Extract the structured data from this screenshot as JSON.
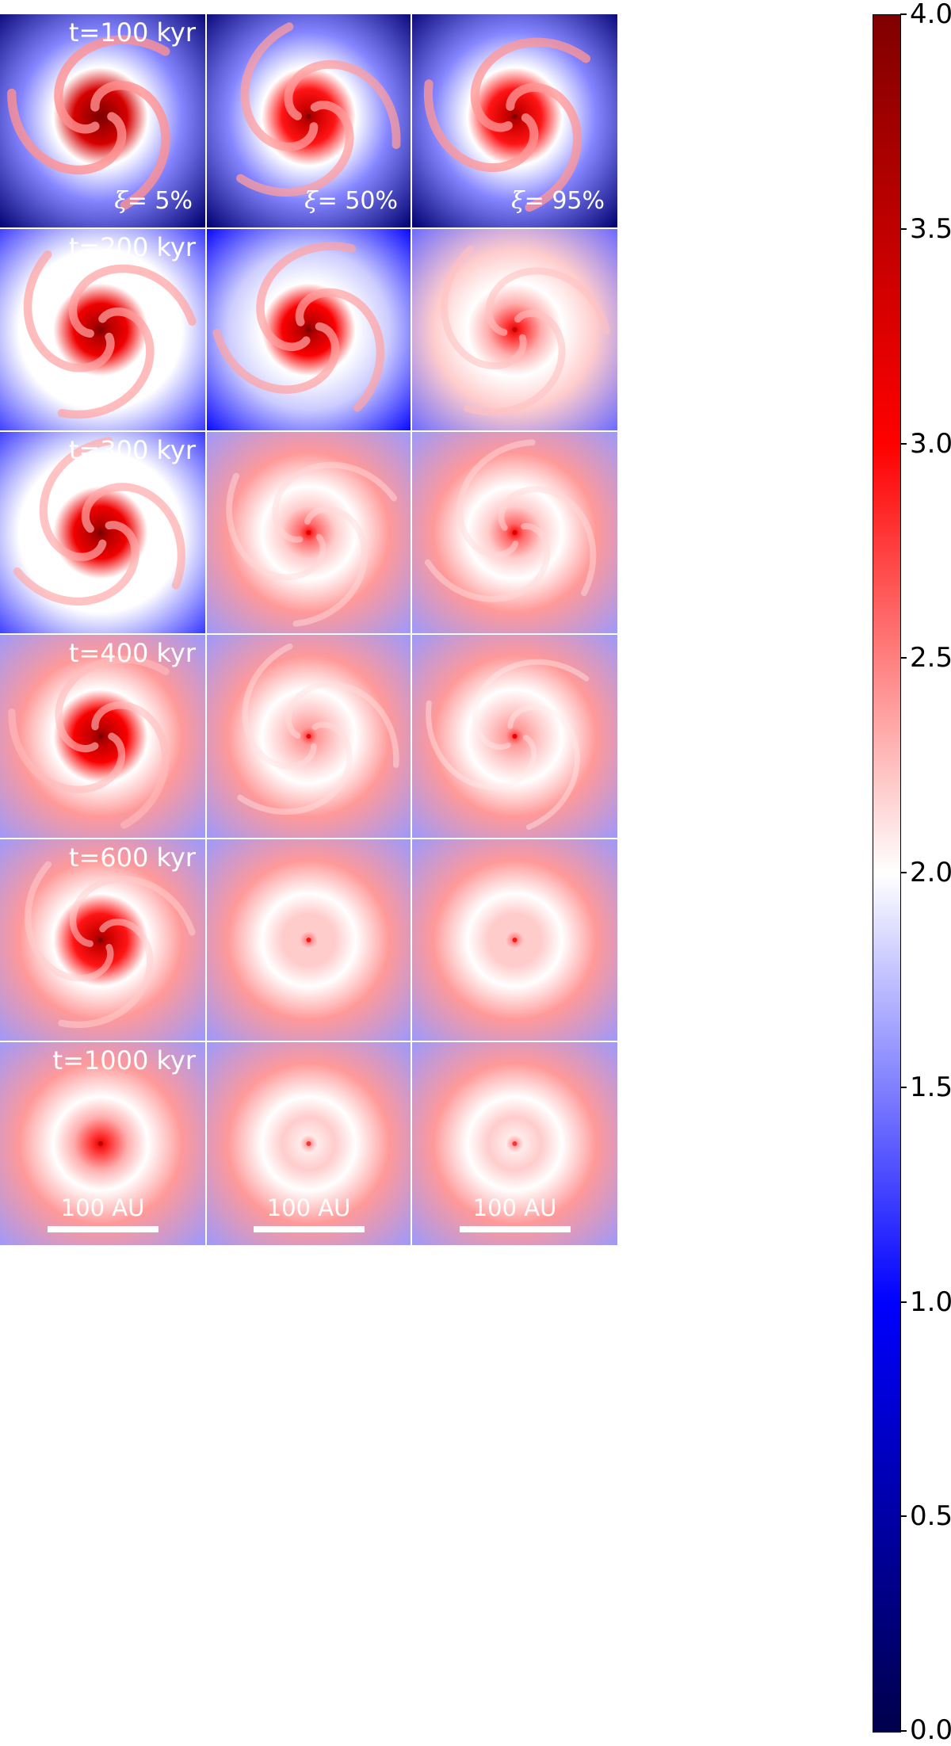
{
  "time_labels": [
    "t=100 kyr",
    "t=200 kyr",
    "t=300 kyr",
    "t=400 kyr",
    "t=600 kyr",
    "t=1000 kyr"
  ],
  "columns": [
    {
      "xi_symbol": "ξ",
      "xi_value": "= 5%"
    },
    {
      "xi_symbol": "ξ",
      "xi_value": "= 50%"
    },
    {
      "xi_symbol": "ξ",
      "xi_value": "= 95%"
    }
  ],
  "scalebar_label": "100 AU",
  "colorbar": {
    "ticks": [
      "0.0",
      "0.5",
      "1.0",
      "1.5",
      "2.0",
      "2.5",
      "3.0",
      "3.5",
      "4.0"
    ],
    "range": [
      0.0,
      4.0
    ],
    "colors": [
      "#00004c",
      "#0000ff",
      "#ffffff",
      "#ff0000",
      "#800000"
    ]
  },
  "panels": [
    {
      "row": 0,
      "col": 0,
      "core": 0.95,
      "arms": 0.9,
      "bg": 0.0
    },
    {
      "row": 0,
      "col": 1,
      "core": 0.85,
      "arms": 0.8,
      "bg": 0.0
    },
    {
      "row": 0,
      "col": 2,
      "core": 0.85,
      "arms": 0.85,
      "bg": 0.0
    },
    {
      "row": 1,
      "col": 0,
      "core": 0.9,
      "arms": 0.75,
      "bg": 0.35
    },
    {
      "row": 1,
      "col": 1,
      "core": 0.88,
      "arms": 0.75,
      "bg": 0.3
    },
    {
      "row": 1,
      "col": 2,
      "core": 0.7,
      "arms": 0.5,
      "bg": 0.4
    },
    {
      "row": 2,
      "col": 0,
      "core": 0.9,
      "arms": 0.7,
      "bg": 0.35
    },
    {
      "row": 2,
      "col": 1,
      "core": 0.65,
      "arms": 0.3,
      "bg": 0.45
    },
    {
      "row": 2,
      "col": 2,
      "core": 0.65,
      "arms": 0.3,
      "bg": 0.45
    },
    {
      "row": 3,
      "col": 0,
      "core": 0.88,
      "arms": 0.55,
      "bg": 0.45
    },
    {
      "row": 3,
      "col": 1,
      "core": 0.6,
      "arms": 0.25,
      "bg": 0.45
    },
    {
      "row": 3,
      "col": 2,
      "core": 0.6,
      "arms": 0.15,
      "bg": 0.45
    },
    {
      "row": 4,
      "col": 0,
      "core": 0.85,
      "arms": 0.4,
      "bg": 0.45
    },
    {
      "row": 4,
      "col": 1,
      "core": 0.55,
      "arms": 0.0,
      "bg": 0.45
    },
    {
      "row": 4,
      "col": 2,
      "core": 0.55,
      "arms": 0.0,
      "bg": 0.45
    },
    {
      "row": 5,
      "col": 0,
      "core": 0.7,
      "arms": 0.0,
      "bg": 0.45
    },
    {
      "row": 5,
      "col": 1,
      "core": 0.52,
      "arms": 0.0,
      "bg": 0.45
    },
    {
      "row": 5,
      "col": 2,
      "core": 0.52,
      "arms": 0.0,
      "bg": 0.45
    }
  ]
}
